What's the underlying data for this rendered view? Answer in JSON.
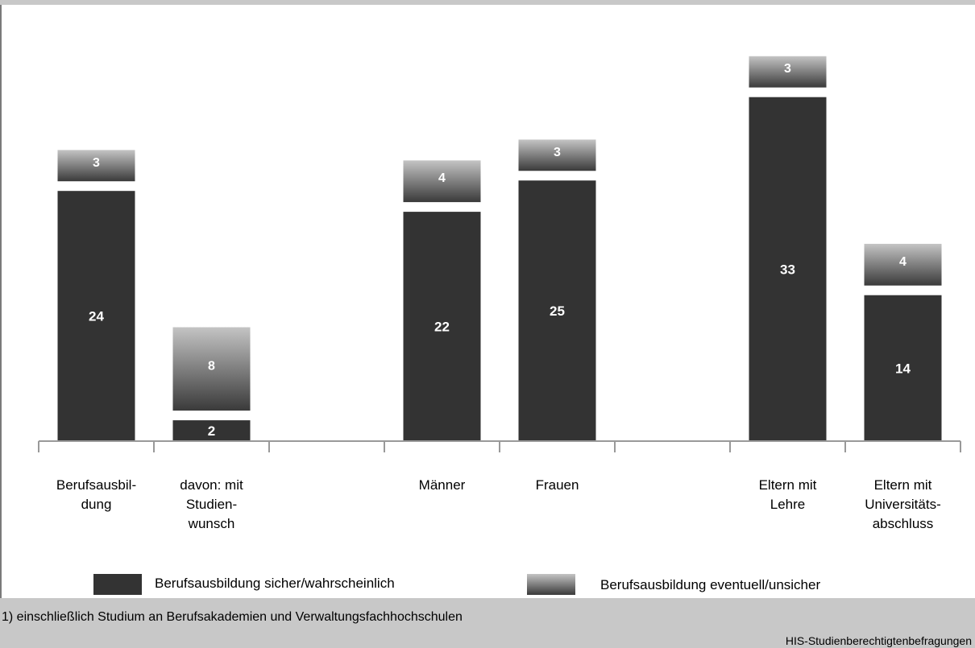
{
  "chart_data": {
    "type": "bar",
    "stacked": true,
    "categories": [
      {
        "lines": [
          "Berufsausbil-",
          "dung"
        ]
      },
      {
        "lines": [
          "davon: mit",
          "Studien-",
          "wunsch"
        ]
      },
      {
        "lines": []
      },
      {
        "lines": [
          "Männer"
        ]
      },
      {
        "lines": [
          "Frauen"
        ]
      },
      {
        "lines": []
      },
      {
        "lines": [
          "Eltern mit",
          "Lehre"
        ]
      },
      {
        "lines": [
          "Eltern mit",
          "Universitäts-",
          "abschluss"
        ]
      }
    ],
    "series": [
      {
        "name": "Berufsausbildung sicher/wahrscheinlich",
        "color": "#333333",
        "values": [
          24,
          2,
          null,
          22,
          25,
          null,
          33,
          14
        ]
      },
      {
        "name": "Berufsausbildung eventuell/unsicher",
        "gradient": [
          "#c4c4c4",
          "#3a3a3a"
        ],
        "values": [
          3,
          8,
          null,
          4,
          3,
          null,
          3,
          4
        ]
      }
    ],
    "ylim": [
      0,
      37
    ]
  },
  "footnote": "1) einschließlich Studium an Berufsakademien und Verwaltungsfachhochschulen",
  "source": "HIS-Studienberechtigtenbefragungen"
}
